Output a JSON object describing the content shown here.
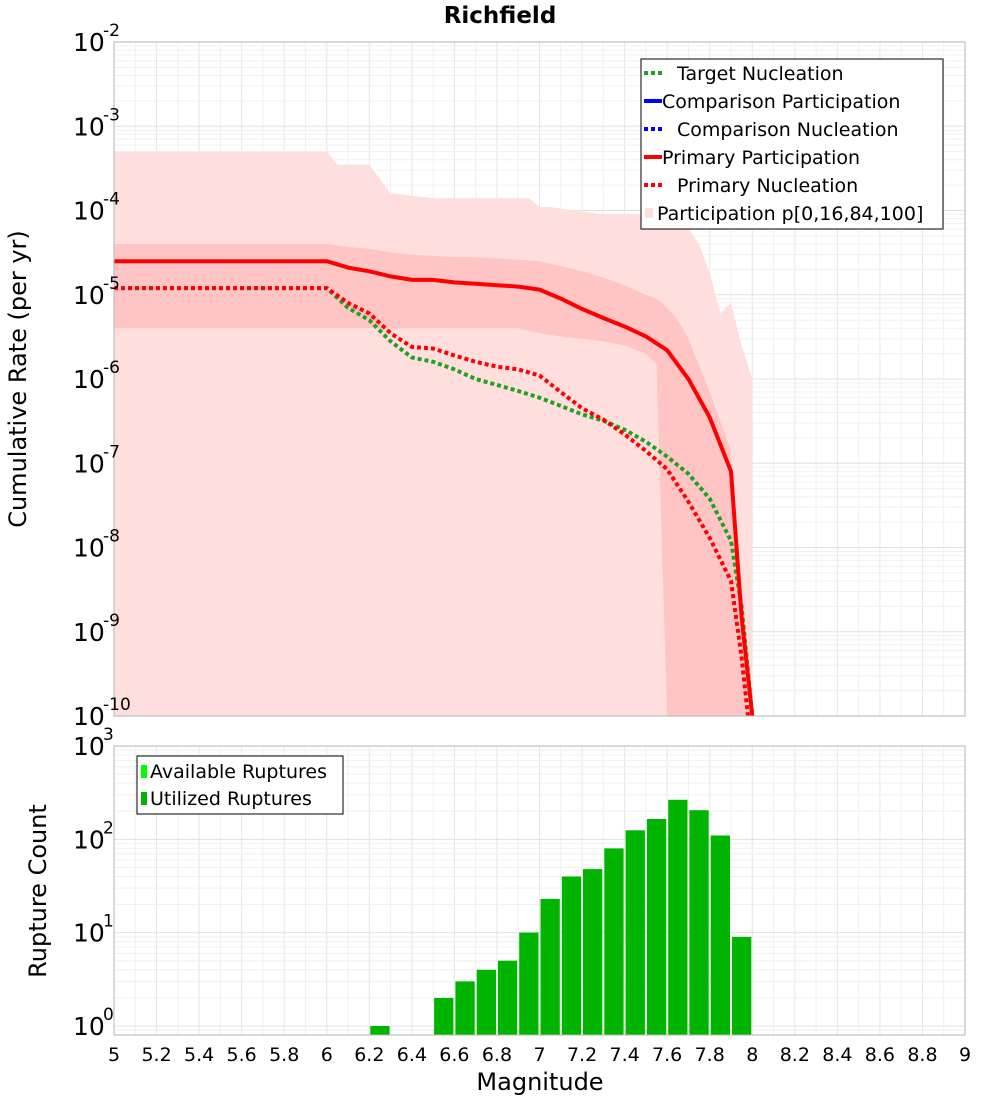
{
  "chart_data": [
    {
      "type": "line",
      "title": "Richfield",
      "xlabel": "",
      "ylabel": "Cumulative Rate (per yr)",
      "xlim": [
        5,
        9
      ],
      "ylim": [
        1e-10,
        0.01
      ],
      "yscale": "log",
      "grid": true,
      "legend_position": "top-right",
      "y_ticks": [
        {
          "base": "10",
          "exp": "-10"
        },
        {
          "base": "10",
          "exp": "-9"
        },
        {
          "base": "10",
          "exp": "-8"
        },
        {
          "base": "10",
          "exp": "-7"
        },
        {
          "base": "10",
          "exp": "-6"
        },
        {
          "base": "10",
          "exp": "-5"
        },
        {
          "base": "10",
          "exp": "-4"
        },
        {
          "base": "10",
          "exp": "-3"
        },
        {
          "base": "10",
          "exp": "-2"
        }
      ],
      "legend": [
        {
          "label": "Target Nucleation",
          "color": "#22a022",
          "style": "dotted"
        },
        {
          "label": "Comparison Participation",
          "color": "#0000ff",
          "style": "solid"
        },
        {
          "label": "Comparison Nucleation",
          "color": "#0000ff",
          "style": "dotted"
        },
        {
          "label": "Primary Participation",
          "color": "#ff0000",
          "style": "solid"
        },
        {
          "label": "Primary Nucleation",
          "color": "#ff0000",
          "style": "dotted"
        },
        {
          "label": "Participation p[0,16,84,100]",
          "color": "#ffdede",
          "style": "fill"
        }
      ],
      "series": [
        {
          "name": "Target Nucleation",
          "color": "#22a022",
          "style": "dotted",
          "x": [
            5.0,
            6.0,
            6.1,
            6.2,
            6.3,
            6.4,
            6.5,
            6.6,
            6.7,
            6.8,
            6.9,
            7.0,
            7.1,
            7.2,
            7.3,
            7.4,
            7.5,
            7.6,
            7.7,
            7.8,
            7.9,
            7.95,
            8.0
          ],
          "y": [
            1.2e-05,
            1.2e-05,
            7e-06,
            5e-06,
            2.8e-06,
            1.8e-06,
            1.6e-06,
            1.3e-06,
            1e-06,
            8.5e-07,
            7.2e-07,
            6e-07,
            4.8e-07,
            3.8e-07,
            3.2e-07,
            2.5e-07,
            1.8e-07,
            1.2e-07,
            7.5e-08,
            3.8e-08,
            1.2e-08,
            2e-09,
            1e-10
          ]
        },
        {
          "name": "Primary Participation",
          "color": "#ff0000",
          "style": "solid",
          "x": [
            5.0,
            6.0,
            6.1,
            6.2,
            6.3,
            6.4,
            6.5,
            6.6,
            6.7,
            6.8,
            6.9,
            7.0,
            7.1,
            7.2,
            7.3,
            7.4,
            7.5,
            7.6,
            7.7,
            7.8,
            7.9,
            7.95,
            8.0
          ],
          "y": [
            2.5e-05,
            2.5e-05,
            2.1e-05,
            1.9e-05,
            1.65e-05,
            1.5e-05,
            1.5e-05,
            1.4e-05,
            1.35e-05,
            1.3e-05,
            1.25e-05,
            1.15e-05,
            9e-06,
            6.8e-06,
            5.3e-06,
            4.2e-06,
            3.2e-06,
            2.2e-06,
            1e-06,
            3.5e-07,
            8e-08,
            1.5e-09,
            1e-10
          ]
        },
        {
          "name": "Primary Nucleation",
          "color": "#ff0000",
          "style": "dotted",
          "x": [
            5.0,
            6.0,
            6.1,
            6.2,
            6.3,
            6.4,
            6.5,
            6.6,
            6.7,
            6.8,
            6.9,
            7.0,
            7.1,
            7.2,
            7.3,
            7.4,
            7.5,
            7.6,
            7.7,
            7.8,
            7.9,
            7.95,
            7.98
          ],
          "y": [
            1.2e-05,
            1.2e-05,
            8e-06,
            6e-06,
            3.5e-06,
            2.4e-06,
            2.3e-06,
            1.9e-06,
            1.6e-06,
            1.4e-06,
            1.3e-06,
            1.1e-06,
            7e-07,
            4.5e-07,
            3.3e-07,
            2.2e-07,
            1.4e-07,
            8.5e-08,
            3.5e-08,
            1.3e-08,
            4e-09,
            5e-10,
            1e-10
          ]
        }
      ],
      "bands": [
        {
          "name": "p0-p100",
          "color": "#ffdede",
          "x": [
            5.0,
            6.0,
            6.05,
            6.2,
            6.3,
            6.5,
            6.95,
            7.0,
            7.05,
            7.3,
            7.5,
            7.6,
            7.7,
            7.75,
            7.8,
            7.85,
            7.9,
            7.95,
            8.0
          ],
          "upper": [
            0.0005,
            0.0005,
            0.00035,
            0.00035,
            0.00016,
            0.00014,
            0.00014,
            0.00011,
            0.00011,
            9e-05,
            9e-05,
            9e-05,
            6e-05,
            4e-05,
            1.8e-05,
            6e-06,
            8e-06,
            2.5e-06,
            1e-06
          ],
          "lower": [
            1e-10,
            1e-10,
            1e-10,
            1e-10,
            1e-10,
            1e-10,
            1e-10,
            1e-10,
            1e-10,
            1e-10,
            1e-10,
            1e-10,
            1e-10,
            1e-10,
            1e-10,
            1e-10,
            1e-10,
            1e-10,
            1e-10
          ]
        },
        {
          "name": "p16-p84",
          "color": "#ffc4c4",
          "x": [
            5.0,
            6.0,
            6.1,
            6.2,
            6.3,
            6.4,
            6.5,
            6.6,
            6.7,
            6.8,
            6.9,
            7.0,
            7.1,
            7.2,
            7.3,
            7.4,
            7.5,
            7.55,
            7.6,
            7.65,
            7.7,
            7.8,
            7.9,
            7.95,
            7.98
          ],
          "upper": [
            4e-05,
            4e-05,
            3.7e-05,
            3.5e-05,
            3.2e-05,
            3e-05,
            2.9e-05,
            2.8e-05,
            2.8e-05,
            2.7e-05,
            2.6e-05,
            2.5e-05,
            2.2e-05,
            1.9e-05,
            1.6e-05,
            1.3e-05,
            1e-05,
            9e-06,
            7e-06,
            5e-06,
            3e-06,
            7e-07,
            1.4e-07,
            2e-09,
            1e-10
          ],
          "lower": [
            4e-06,
            4e-06,
            4e-06,
            4e-06,
            4e-06,
            4e-06,
            4e-06,
            4e-06,
            4e-06,
            4e-06,
            4e-06,
            3.5e-06,
            3.2e-06,
            3e-06,
            2.8e-06,
            2.5e-06,
            2e-06,
            1.5e-06,
            1e-10,
            1e-10,
            1e-10,
            1e-10,
            1e-10,
            1e-10,
            1e-10
          ]
        }
      ]
    },
    {
      "type": "bar",
      "title": "",
      "xlabel": "Magnitude",
      "ylabel": "Rupture Count",
      "xlim": [
        5,
        9
      ],
      "ylim": [
        0.8,
        1000
      ],
      "yscale": "log",
      "grid": true,
      "legend_position": "top-left",
      "x_ticks": [
        "5",
        "5.2",
        "5.4",
        "5.6",
        "5.8",
        "6",
        "6.2",
        "6.4",
        "6.6",
        "6.8",
        "7",
        "7.2",
        "7.4",
        "7.6",
        "7.8",
        "8",
        "8.2",
        "8.4",
        "8.6",
        "8.8",
        "9"
      ],
      "y_ticks": [
        {
          "base": "10",
          "exp": "0"
        },
        {
          "base": "10",
          "exp": "1"
        },
        {
          "base": "10",
          "exp": "2"
        },
        {
          "base": "10",
          "exp": "3"
        }
      ],
      "bin_width": 0.1,
      "legend": [
        {
          "label": "Available Ruptures",
          "color": "#00ff00"
        },
        {
          "label": "Utilized Ruptures",
          "color": "#00b400"
        }
      ],
      "series": [
        {
          "name": "Utilized Ruptures",
          "color": "#00b400",
          "x": [
            6.25,
            6.55,
            6.65,
            6.75,
            6.85,
            6.95,
            7.05,
            7.15,
            7.25,
            7.35,
            7.45,
            7.55,
            7.65,
            7.75,
            7.85,
            7.95
          ],
          "values": [
            1,
            2,
            3,
            4,
            5,
            10,
            23,
            40,
            48,
            80,
            125,
            165,
            265,
            205,
            110,
            9
          ]
        }
      ]
    }
  ]
}
